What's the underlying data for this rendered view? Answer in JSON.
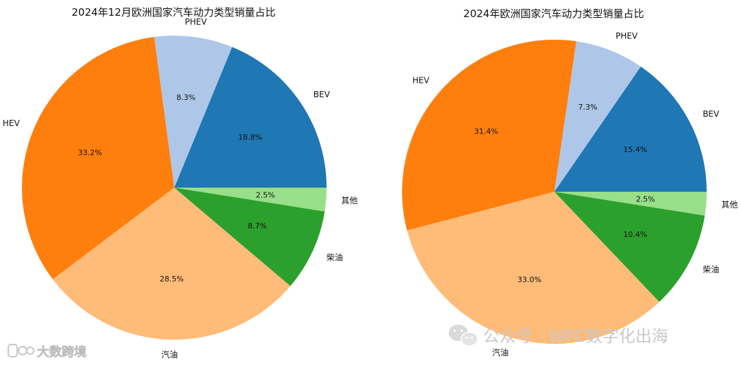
{
  "chart_data": [
    {
      "type": "pie",
      "title": "2024年12月欧洲国家汽车动力类型销量占比",
      "labels": [
        "BEV",
        "PHEV",
        "HEV",
        "汽油",
        "柴油",
        "其他"
      ],
      "values": [
        18.8,
        8.3,
        33.2,
        28.5,
        8.7,
        2.5
      ],
      "percent_labels": [
        "18.8%",
        "8.3%",
        "33.2%",
        "28.5%",
        "8.7%",
        "2.5%"
      ],
      "colors": [
        "#1f77b4",
        "#aec7e8",
        "#ff7f0e",
        "#ffbb78",
        "#2ca02c",
        "#98df8a"
      ],
      "start_angle_deg": 0,
      "direction": "counterclockwise"
    },
    {
      "type": "pie",
      "title": "2024年欧洲国家汽车动力类型销量占比",
      "labels": [
        "BEV",
        "PHEV",
        "HEV",
        "汽油",
        "柴油",
        "其他"
      ],
      "values": [
        15.4,
        7.3,
        31.4,
        33.0,
        10.4,
        2.5
      ],
      "percent_labels": [
        "15.4%",
        "7.3%",
        "31.4%",
        "33.0%",
        "10.4%",
        "2.5%"
      ],
      "colors": [
        "#1f77b4",
        "#aec7e8",
        "#ff7f0e",
        "#ffbb78",
        "#2ca02c",
        "#98df8a"
      ],
      "start_angle_deg": 0,
      "direction": "counterclockwise"
    }
  ],
  "watermarks": {
    "right_text": "公众号 · WPC数字化出海",
    "left_text": "大数跨境"
  }
}
